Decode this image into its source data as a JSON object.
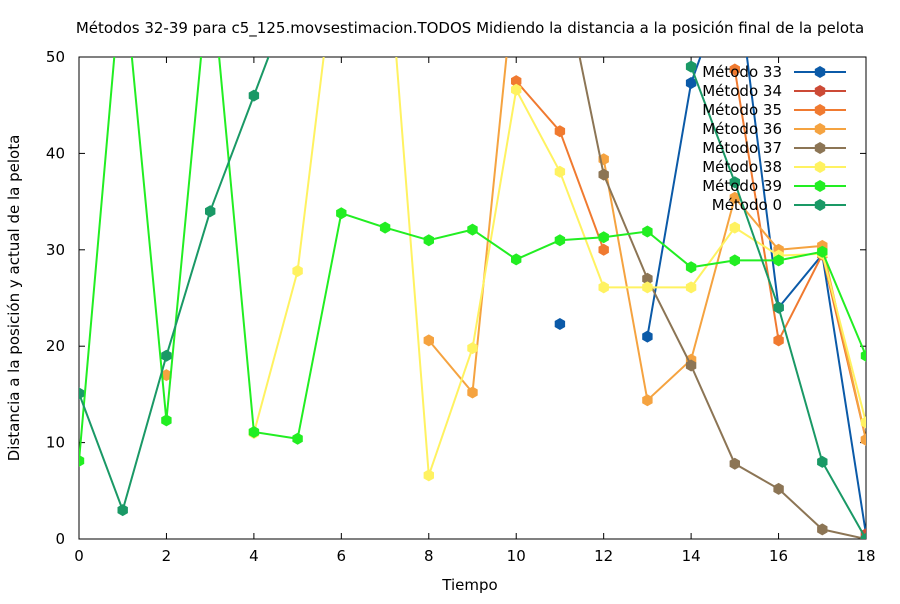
{
  "chart_data": {
    "type": "line",
    "title": "Métodos 32-39 para c5_125.movsestimacion.TODOS Midiendo la distancia a la posición final de la pelota",
    "xlabel": "Tiempo",
    "ylabel": "Distancia a la posición y actual de la pelota",
    "xlim": [
      0,
      18
    ],
    "ylim": [
      0,
      50
    ],
    "x_ticks": [
      0,
      2,
      4,
      6,
      8,
      10,
      12,
      14,
      16,
      18
    ],
    "y_ticks": [
      0,
      10,
      20,
      30,
      40,
      50
    ],
    "x_tick_labels": [
      "0",
      "2",
      "4",
      "6",
      "8",
      "10",
      "12",
      "14",
      "16",
      "18"
    ],
    "y_tick_labels": [
      "0",
      "10",
      "20",
      "30",
      "40",
      "50"
    ],
    "grid": false,
    "legend_position": "top-right",
    "x": [
      0,
      1,
      2,
      3,
      4,
      5,
      6,
      7,
      8,
      9,
      10,
      11,
      12,
      13,
      14,
      15,
      16,
      17,
      18
    ],
    "series": [
      {
        "name": "Método 33",
        "color": "#0b5aa8",
        "values": [
          null,
          null,
          null,
          null,
          null,
          null,
          null,
          null,
          null,
          null,
          null,
          22.3,
          null,
          21.0,
          47.3,
          60,
          24.0,
          29.5,
          0.5
        ]
      },
      {
        "name": "Método 34",
        "color": "#cc4a36",
        "values": [
          null,
          null,
          null,
          null,
          null,
          null,
          null,
          null,
          null,
          null,
          null,
          null,
          null,
          null,
          null,
          null,
          null,
          null,
          0.5
        ]
      },
      {
        "name": "Método 35",
        "color": "#f07a30",
        "values": [
          null,
          null,
          null,
          null,
          null,
          null,
          null,
          null,
          null,
          null,
          47.5,
          42.3,
          30,
          null,
          null,
          48.7,
          20.6,
          29.5,
          10.3
        ]
      },
      {
        "name": "Método 36",
        "color": "#f5a340",
        "values": [
          null,
          null,
          17,
          null,
          null,
          null,
          null,
          null,
          20.6,
          15.2,
          60,
          null,
          39.4,
          14.4,
          18.6,
          35.4,
          30.0,
          30.4,
          10.3
        ]
      },
      {
        "name": "Método 37",
        "color": "#8c7555",
        "values": [
          null,
          null,
          null,
          null,
          null,
          null,
          null,
          null,
          null,
          null,
          null,
          60,
          37.8,
          27.0,
          18.0,
          7.8,
          5.2,
          1.0,
          0.0
        ]
      },
      {
        "name": "Método 38",
        "color": "#fff261",
        "values": [
          null,
          null,
          null,
          null,
          11.0,
          27.8,
          65,
          65,
          6.6,
          19.8,
          46.6,
          38.1,
          26.1,
          26.1,
          26.1,
          32.3,
          29.4,
          29.6,
          12.1
        ]
      },
      {
        "name": "Método 39",
        "color": "#22ee22",
        "values": [
          8.1,
          60,
          12.3,
          60,
          11.1,
          10.4,
          33.8,
          32.3,
          31.0,
          32.1,
          29.0,
          31.0,
          31.3,
          31.9,
          28.2,
          28.9,
          28.9,
          29.8,
          19.0
        ]
      },
      {
        "name": "Método 0",
        "color": "#1a9966",
        "values": [
          15.1,
          3.0,
          19.0,
          34.0,
          46.0,
          58,
          null,
          null,
          null,
          null,
          null,
          null,
          null,
          null,
          49.0,
          37.0,
          24.0,
          8.0,
          0.0
        ]
      }
    ]
  }
}
